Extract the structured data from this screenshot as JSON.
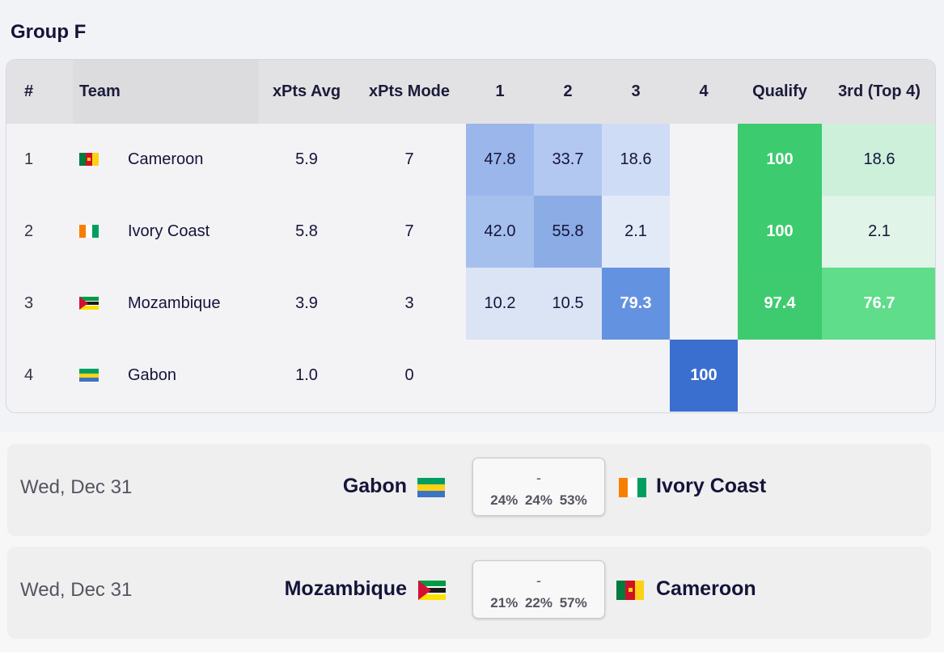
{
  "group": {
    "title": "Group F",
    "columns": [
      "#",
      "Team",
      "xPts Avg",
      "xPts Mode",
      "1",
      "2",
      "3",
      "4",
      "Qualify",
      "3rd (Top 4)"
    ],
    "rows": [
      {
        "rank": "1",
        "team": "Cameroon",
        "flag": "cameroon-flag-icon",
        "xpts_avg": "5.9",
        "xpts_mode": "7",
        "p1": "47.8",
        "p2": "33.7",
        "p3": "18.6",
        "p4": "",
        "qualify": "100",
        "third": "18.6"
      },
      {
        "rank": "2",
        "team": "Ivory Coast",
        "flag": "ivory-coast-flag-icon",
        "xpts_avg": "5.8",
        "xpts_mode": "7",
        "p1": "42.0",
        "p2": "55.8",
        "p3": "2.1",
        "p4": "",
        "qualify": "100",
        "third": "2.1"
      },
      {
        "rank": "3",
        "team": "Mozambique",
        "flag": "mozambique-flag-icon",
        "xpts_avg": "3.9",
        "xpts_mode": "3",
        "p1": "10.2",
        "p2": "10.5",
        "p3": "79.3",
        "p4": "",
        "qualify": "97.4",
        "third": "76.7"
      },
      {
        "rank": "4",
        "team": "Gabon",
        "flag": "gabon-flag-icon",
        "xpts_avg": "1.0",
        "xpts_mode": "0",
        "p1": "",
        "p2": "",
        "p3": "",
        "p4": "100",
        "qualify": "",
        "third": ""
      }
    ]
  },
  "matches": [
    {
      "date": "Wed, Dec 31",
      "home": "Gabon",
      "home_flag": "gabon-flag-icon",
      "score": "-",
      "pcts": "24% 24% 53%",
      "away": "Ivory Coast",
      "away_flag": "ivory-coast-flag-icon"
    },
    {
      "date": "Wed, Dec 31",
      "home": "Mozambique",
      "home_flag": "mozambique-flag-icon",
      "score": "-",
      "pcts": "21% 22% 57%",
      "away": "Cameroon",
      "away_flag": "cameroon-flag-icon"
    }
  ],
  "colors": {
    "heat_blue_strong": "#3a6fcf",
    "heat_blue_mid": "#6392e0",
    "qualify_green": "#3ccb6e",
    "third_green_strong": "#5fdd8b"
  }
}
